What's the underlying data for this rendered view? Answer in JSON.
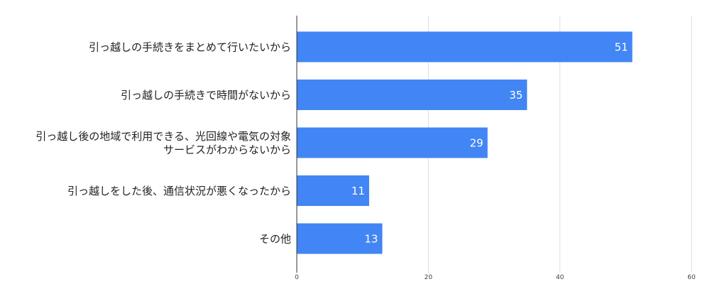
{
  "chart_data": {
    "type": "bar",
    "orientation": "horizontal",
    "title": "",
    "xlabel": "",
    "ylabel": "",
    "categories": [
      [
        "引っ越しの手続きをまとめて行いたいから"
      ],
      [
        "引っ越しの手続きで時間がないから"
      ],
      [
        "引っ越し後の地域で利用できる、光回線や電気の対象",
        "サービスがわからないから"
      ],
      [
        "引っ越しをした後、通信状況が悪くなったから"
      ],
      [
        "その他"
      ]
    ],
    "values": [
      51,
      35,
      29,
      11,
      13
    ],
    "xlim": [
      0,
      60
    ],
    "xticks": [
      0,
      20,
      40,
      60
    ],
    "grid": "vertical",
    "bar_color": "#4285f4",
    "data_labels": true
  }
}
